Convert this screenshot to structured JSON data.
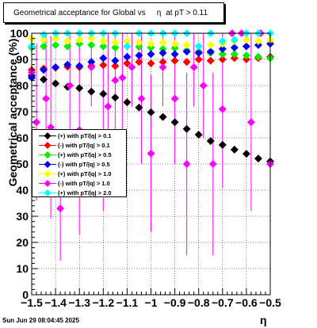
{
  "header": {
    "title_part1": "Geometrical acceptance for Global vs",
    "title_eta": "η",
    "title_part2": "at pT > 0.11"
  },
  "footer": {
    "timestamp": "Sun Jun 29 08:04:45 2025"
  },
  "chart_data": {
    "type": "scatter",
    "xlabel": "η",
    "ylabel": "Geometrical acceptance (%)",
    "xlim": [
      -1.5,
      -0.5
    ],
    "ylim": [
      0,
      100
    ],
    "xticks": [
      -1.5,
      -1.4,
      -1.3,
      -1.2,
      -1.1,
      -1,
      -0.9,
      -0.8,
      -0.7,
      -0.6,
      -0.5
    ],
    "xtick_labels": [
      "−1.5",
      "−1.4",
      "−1.3",
      "−1.2",
      "−1.1",
      "−1",
      "−0.9",
      "−0.8",
      "−0.7",
      "−0.6",
      "−0.5"
    ],
    "yticks": [
      0,
      10,
      20,
      30,
      40,
      50,
      60,
      70,
      80,
      90,
      100
    ],
    "grid": true,
    "legend_position": "left-middle",
    "series": [
      {
        "name": "(+) with pT/|q| > 0.1",
        "color": "#000000",
        "marker": "diamond",
        "points": [
          [
            -1.5,
            83.8
          ],
          [
            -1.45,
            82.3
          ],
          [
            -1.4,
            80.8
          ],
          [
            -1.35,
            79.5
          ],
          [
            -1.3,
            79.0
          ],
          [
            -1.25,
            77.7
          ],
          [
            -1.2,
            76.8
          ],
          [
            -1.15,
            75.4
          ],
          [
            -1.1,
            73.6
          ],
          [
            -1.05,
            71.6
          ],
          [
            -1.0,
            69.8
          ],
          [
            -0.95,
            68.0
          ],
          [
            -0.9,
            66.0
          ],
          [
            -0.85,
            63.4
          ],
          [
            -0.8,
            61.2
          ],
          [
            -0.75,
            58.8
          ],
          [
            -0.7,
            57.3
          ],
          [
            -0.65,
            55.5
          ],
          [
            -0.6,
            53.9
          ],
          [
            -0.55,
            52.1
          ],
          [
            -0.5,
            51.0
          ]
        ],
        "errors": []
      },
      {
        "name": "(-) with pT/|q| > 0.1",
        "color": "#ff0000",
        "marker": "diamond",
        "points": [
          [
            -1.5,
            86.0
          ],
          [
            -1.45,
            86.5
          ],
          [
            -1.4,
            86.8
          ],
          [
            -1.35,
            87.2
          ],
          [
            -1.3,
            87.0
          ],
          [
            -1.25,
            87.5
          ],
          [
            -1.2,
            87.8
          ],
          [
            -1.15,
            87.5
          ],
          [
            -1.1,
            88.5
          ],
          [
            -1.05,
            89.0
          ],
          [
            -1.0,
            88.5
          ],
          [
            -0.95,
            89.0
          ],
          [
            -0.9,
            89.5
          ],
          [
            -0.85,
            89.0
          ],
          [
            -0.8,
            90.0
          ],
          [
            -0.75,
            89.5
          ],
          [
            -0.7,
            90.0
          ],
          [
            -0.65,
            90.5
          ],
          [
            -0.6,
            90.0
          ],
          [
            -0.55,
            90.5
          ],
          [
            -0.5,
            91.0
          ]
        ],
        "errors": []
      },
      {
        "name": "(+) with pT/|q| > 0.5",
        "color": "#00ee00",
        "marker": "diamond",
        "points": [
          [
            -1.5,
            94.5
          ],
          [
            -1.45,
            95.0
          ],
          [
            -1.4,
            95.5
          ],
          [
            -1.35,
            95.0
          ],
          [
            -1.3,
            96.0
          ],
          [
            -1.25,
            95.5
          ],
          [
            -1.2,
            95.0
          ],
          [
            -1.15,
            94.5
          ],
          [
            -1.1,
            95.0
          ],
          [
            -1.05,
            94.8
          ],
          [
            -1.0,
            94.5
          ],
          [
            -0.95,
            94.0
          ],
          [
            -0.9,
            94.3
          ],
          [
            -0.85,
            93.5
          ],
          [
            -0.8,
            93.0
          ],
          [
            -0.75,
            92.5
          ],
          [
            -0.7,
            92.0
          ],
          [
            -0.65,
            92.0
          ],
          [
            -0.6,
            91.5
          ],
          [
            -0.55,
            91.0
          ],
          [
            -0.5,
            90.5
          ]
        ],
        "errors": []
      },
      {
        "name": "(-) with pT/|q| > 0.5",
        "color": "#0000ff",
        "marker": "diamond",
        "points": [
          [
            -1.5,
            83.0
          ],
          [
            -1.45,
            86.0
          ],
          [
            -1.4,
            87.0
          ],
          [
            -1.35,
            88.0
          ],
          [
            -1.3,
            87.5
          ],
          [
            -1.25,
            89.0
          ],
          [
            -1.2,
            90.5
          ],
          [
            -1.15,
            89.5
          ],
          [
            -1.1,
            91.0
          ],
          [
            -1.05,
            91.5
          ],
          [
            -1.0,
            92.0
          ],
          [
            -0.95,
            92.5
          ],
          [
            -0.9,
            92.0
          ],
          [
            -0.85,
            93.0
          ],
          [
            -0.8,
            92.5
          ],
          [
            -0.75,
            93.0
          ],
          [
            -0.7,
            94.0
          ],
          [
            -0.65,
            94.5
          ],
          [
            -0.6,
            95.0
          ],
          [
            -0.55,
            95.5
          ],
          [
            -0.5,
            96.0
          ]
        ],
        "errors": []
      },
      {
        "name": "(+) with pT/|q| > 1.0",
        "color": "#ffff00",
        "marker": "diamond",
        "points": [
          [
            -1.5,
            98.0
          ],
          [
            -1.45,
            97.5
          ],
          [
            -1.4,
            98.0
          ],
          [
            -1.35,
            97.0
          ],
          [
            -1.3,
            97.5
          ],
          [
            -1.25,
            98.0
          ],
          [
            -1.2,
            97.0
          ],
          [
            -1.15,
            96.5
          ],
          [
            -1.1,
            97.0
          ],
          [
            -1.05,
            96.5
          ],
          [
            -1.0,
            96.0
          ],
          [
            -0.95,
            96.5
          ],
          [
            -0.9,
            96.0
          ],
          [
            -0.85,
            95.5
          ],
          [
            -0.8,
            95.0
          ],
          [
            -0.75,
            95.5
          ],
          [
            -0.7,
            96.0
          ],
          [
            -0.65,
            97.0
          ],
          [
            -0.6,
            97.5
          ],
          [
            -0.55,
            97.0
          ],
          [
            -0.5,
            97.5
          ]
        ],
        "errors": []
      },
      {
        "name": "(-) with pT/|q| > 1.0",
        "color": "#ff00ff",
        "marker": "diamond",
        "points": [
          [
            -1.5,
            85.0
          ],
          [
            -1.48,
            66.0
          ],
          [
            -1.44,
            75.0
          ],
          [
            -1.42,
            64.0
          ],
          [
            -1.38,
            33.0
          ],
          [
            -1.34,
            80.0
          ],
          [
            -1.3,
            63.0
          ],
          [
            -1.25,
            87.0
          ],
          [
            -1.2,
            62.0
          ],
          [
            -1.18,
            72.0
          ],
          [
            -1.15,
            82.0
          ],
          [
            -1.12,
            83.0
          ],
          [
            -1.08,
            87.0
          ],
          [
            -1.04,
            75.0
          ],
          [
            -1.0,
            54.0
          ],
          [
            -0.95,
            87.0
          ],
          [
            -0.9,
            75.0
          ],
          [
            -0.85,
            50.0
          ],
          [
            -0.82,
            87.0
          ],
          [
            -0.78,
            80.0
          ],
          [
            -0.74,
            50.0
          ],
          [
            -0.7,
            71.0
          ],
          [
            -0.66,
            100.0
          ],
          [
            -0.62,
            100.0
          ],
          [
            -0.58,
            66.0
          ],
          [
            -0.54,
            100.0
          ],
          [
            -0.5,
            50.0
          ]
        ],
        "errors": [
          [
            -1.5,
            12
          ],
          [
            -1.48,
            30
          ],
          [
            -1.44,
            25
          ],
          [
            -1.42,
            35
          ],
          [
            -1.38,
            20
          ],
          [
            -1.34,
            30
          ],
          [
            -1.3,
            40
          ],
          [
            -1.25,
            15
          ],
          [
            -1.2,
            30
          ],
          [
            -1.18,
            30
          ],
          [
            -1.15,
            20
          ],
          [
            -1.12,
            20
          ],
          [
            -1.08,
            15
          ],
          [
            -1.04,
            25
          ],
          [
            -1.0,
            30
          ],
          [
            -0.95,
            15
          ],
          [
            -0.9,
            25
          ],
          [
            -0.85,
            35
          ],
          [
            -0.82,
            15
          ],
          [
            -0.78,
            20
          ],
          [
            -0.74,
            35
          ],
          [
            -0.7,
            30
          ],
          [
            -0.66,
            0
          ],
          [
            -0.62,
            0
          ],
          [
            -0.58,
            34
          ],
          [
            -0.54,
            0
          ],
          [
            -0.5,
            25
          ]
        ]
      },
      {
        "name": "(+) with pT/|q| > 2.0",
        "color": "#00ffff",
        "marker": "diamond",
        "points": [
          [
            -1.5,
            95.0
          ],
          [
            -1.45,
            99.5
          ],
          [
            -1.4,
            100.0
          ],
          [
            -1.35,
            100.0
          ],
          [
            -1.3,
            100.0
          ],
          [
            -1.25,
            100.0
          ],
          [
            -1.2,
            100.0
          ],
          [
            -1.15,
            100.0
          ],
          [
            -1.1,
            95.0
          ],
          [
            -1.05,
            100.0
          ],
          [
            -1.0,
            100.0
          ],
          [
            -0.95,
            100.0
          ],
          [
            -0.9,
            100.0
          ],
          [
            -0.85,
            100.0
          ],
          [
            -0.8,
            95.0
          ],
          [
            -0.75,
            100.0
          ],
          [
            -0.7,
            97.0
          ],
          [
            -0.65,
            97.5
          ],
          [
            -0.6,
            100.0
          ],
          [
            -0.55,
            100.0
          ],
          [
            -0.5,
            100.0
          ]
        ],
        "errors": []
      }
    ]
  }
}
